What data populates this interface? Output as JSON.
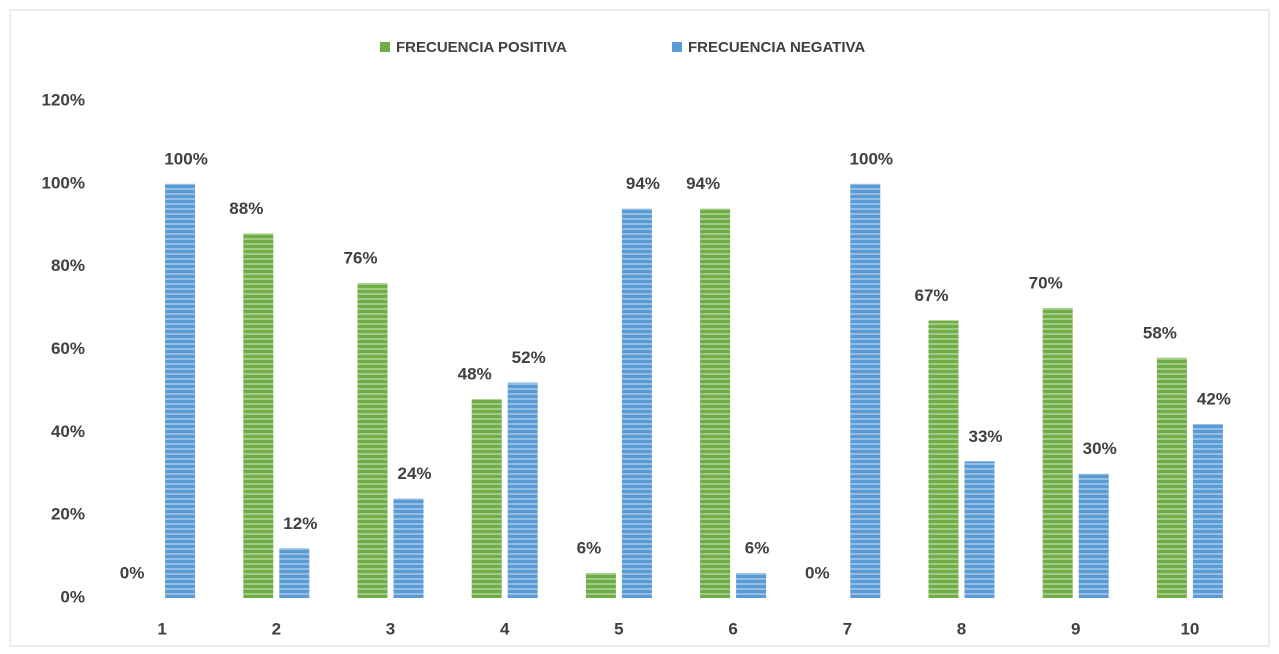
{
  "chart_data": {
    "type": "bar",
    "categories": [
      "1",
      "2",
      "3",
      "4",
      "5",
      "6",
      "7",
      "8",
      "9",
      "10"
    ],
    "series": [
      {
        "name": "FRECUENCIA POSITIVA",
        "color": "#70ad47",
        "values": [
          0,
          88,
          76,
          48,
          6,
          94,
          0,
          67,
          70,
          58
        ],
        "value_labels": [
          "0%",
          "88%",
          "76%",
          "48%",
          "6%",
          "94%",
          "0%",
          "67%",
          "70%",
          "58%"
        ]
      },
      {
        "name": "FRECUENCIA NEGATIVA",
        "color": "#5b9bd5",
        "values": [
          100,
          12,
          24,
          52,
          94,
          6,
          100,
          33,
          30,
          42
        ],
        "value_labels": [
          "100%",
          "12%",
          "24%",
          "52%",
          "94%",
          "6%",
          "100%",
          "33%",
          "30%",
          "42%"
        ]
      }
    ],
    "ylim": [
      0,
      120
    ],
    "yticks": [
      {
        "value": 0,
        "label": "0%"
      },
      {
        "value": 20,
        "label": "20%"
      },
      {
        "value": 40,
        "label": "40%"
      },
      {
        "value": 60,
        "label": "60%"
      },
      {
        "value": 80,
        "label": "80%"
      },
      {
        "value": 100,
        "label": "100%"
      },
      {
        "value": 120,
        "label": "120%"
      }
    ],
    "grid": false,
    "legend": "top"
  }
}
